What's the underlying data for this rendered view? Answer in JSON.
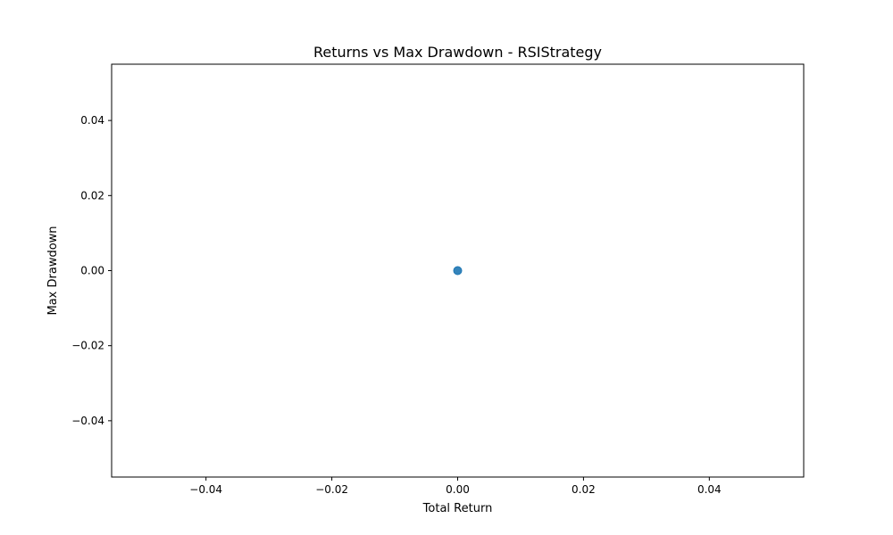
{
  "chart_data": {
    "type": "scatter",
    "title": "Returns vs Max Drawdown - RSIStrategy",
    "xlabel": "Total Return",
    "ylabel": "Max Drawdown",
    "xlim": [
      -0.055,
      0.055
    ],
    "ylim": [
      -0.055,
      0.055
    ],
    "x_ticks": [
      -0.04,
      -0.02,
      0.0,
      0.02,
      0.04
    ],
    "x_tick_labels": [
      "−0.04",
      "−0.02",
      "0.00",
      "0.02",
      "0.04"
    ],
    "y_ticks": [
      -0.04,
      -0.02,
      0.0,
      0.02,
      0.04
    ],
    "y_tick_labels": [
      "−0.04",
      "−0.02",
      "0.00",
      "0.02",
      "0.04"
    ],
    "grid": false,
    "legend": "none",
    "series": [
      {
        "color": "#1f77b4",
        "points": [
          {
            "x": 0.0,
            "y": 0.0
          }
        ]
      }
    ]
  }
}
